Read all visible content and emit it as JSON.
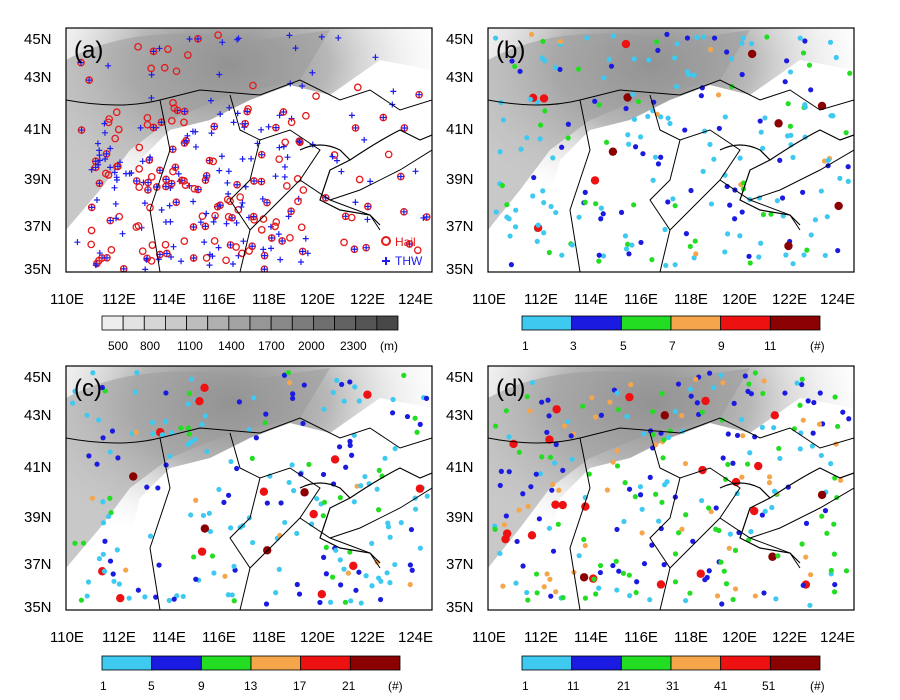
{
  "panels": [
    {
      "letter": "(a)",
      "legend": [
        {
          "symbol": "o",
          "label": "Hail",
          "color": "#e41a1c"
        },
        {
          "symbol": "+",
          "label": "THW",
          "color": "#1c1cf0"
        }
      ]
    },
    {
      "letter": "(b)"
    },
    {
      "letter": "(c)"
    },
    {
      "letter": "(d)"
    }
  ],
  "lat_labels": [
    "45N",
    "43N",
    "41N",
    "39N",
    "37N",
    "35N"
  ],
  "lon_labels": [
    "110E",
    "112E",
    "114E",
    "116E",
    "118E",
    "120E",
    "122E",
    "124E"
  ],
  "colorbars": {
    "elevation": {
      "labels": [
        "500",
        "800",
        "1100",
        "1400",
        "1700",
        "2000",
        "2300"
      ],
      "unit": "(m)",
      "shades": [
        "#ededed",
        "#e2e2e2",
        "#d6d6d6",
        "#cacaca",
        "#bdbdbd",
        "#b0b0b0",
        "#a3a3a3",
        "#969696",
        "#898989",
        "#7c7c7c",
        "#6f6f6f",
        "#626262",
        "#555555",
        "#484848"
      ]
    },
    "b": {
      "labels": [
        "1",
        "3",
        "5",
        "7",
        "9",
        "11"
      ],
      "unit": "(#)"
    },
    "c": {
      "labels": [
        "1",
        "5",
        "9",
        "13",
        "17",
        "21"
      ],
      "unit": "(#)"
    },
    "d": {
      "labels": [
        "1",
        "11",
        "21",
        "31",
        "41",
        "51"
      ],
      "unit": "(#)"
    },
    "category_colors": [
      "#3ec9f0",
      "#1a1ae0",
      "#22dd22",
      "#f5a54a",
      "#ee1111",
      "#8b0000"
    ]
  }
}
